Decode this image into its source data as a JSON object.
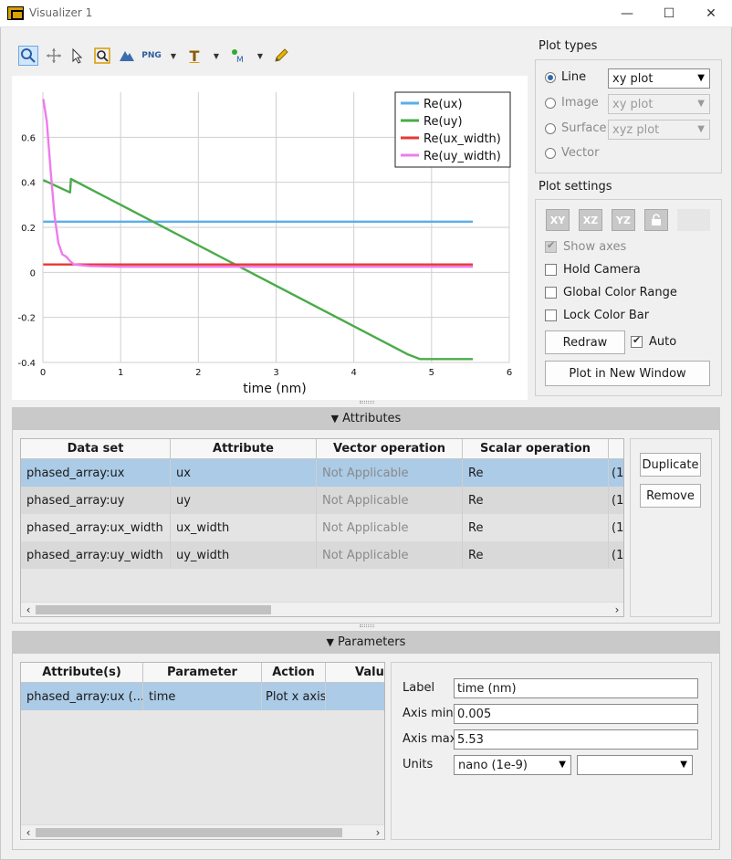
{
  "window": {
    "title": "Visualizer 1",
    "minimize": "—",
    "maximize": "☐",
    "close": "✕"
  },
  "toolbar": {
    "icons": [
      "zoom-icon",
      "pan-icon",
      "select-icon",
      "zoom-extent-icon",
      "mountain-icon",
      "png-export-icon",
      "text-icon",
      "marker-icon",
      "pencil-icon"
    ],
    "png_label": "PNG",
    "text_label": "T",
    "marker_label": "M"
  },
  "chart_data": {
    "type": "line",
    "xlabel": "time (nm)",
    "ylabel": "",
    "xlim": [
      0,
      6
    ],
    "ylim": [
      -0.4,
      0.8
    ],
    "xticks": [
      "0",
      "1",
      "2",
      "3",
      "4",
      "5",
      "6"
    ],
    "yticks": [
      "-0.4",
      "-0.2",
      "0",
      "0.2",
      "0.4",
      "0.6"
    ],
    "grid": true,
    "legend_position": "top-right",
    "series": [
      {
        "name": "Re(ux)",
        "color": "#5aaee8",
        "x": [
          0.005,
          5.53
        ],
        "y": [
          0.225,
          0.225
        ]
      },
      {
        "name": "Re(uy)",
        "color": "#4aab4a",
        "x": [
          0.005,
          0.35,
          0.36,
          4.7,
          4.85,
          5.53
        ],
        "y": [
          0.41,
          0.355,
          0.415,
          -0.365,
          -0.385,
          -0.385
        ]
      },
      {
        "name": "Re(ux_width)",
        "color": "#e53935",
        "x": [
          0.005,
          5.53
        ],
        "y": [
          0.035,
          0.035
        ]
      },
      {
        "name": "Re(uy_width)",
        "color": "#ee7cec",
        "x": [
          0.005,
          0.05,
          0.1,
          0.15,
          0.2,
          0.25,
          0.3,
          0.35,
          0.4,
          0.6,
          1.0,
          2.0,
          3.0,
          4.0,
          5.53
        ],
        "y": [
          0.77,
          0.67,
          0.45,
          0.25,
          0.13,
          0.08,
          0.07,
          0.05,
          0.035,
          0.028,
          0.025,
          0.025,
          0.025,
          0.025,
          0.025
        ]
      }
    ]
  },
  "plot_types": {
    "title": "Plot types",
    "options": [
      {
        "label": "Line",
        "checked": true,
        "select": "xy plot",
        "enabled": true
      },
      {
        "label": "Image",
        "checked": false,
        "select": "xy plot",
        "enabled": false
      },
      {
        "label": "Surface",
        "checked": false,
        "select": "xyz plot",
        "enabled": false
      },
      {
        "label": "Vector",
        "checked": false,
        "select": "",
        "enabled": false
      }
    ]
  },
  "plot_settings": {
    "title": "Plot settings",
    "axis_buttons": [
      "XY",
      "XZ",
      "YZ"
    ],
    "show_axes": "Show axes",
    "hold_camera": "Hold Camera",
    "global_color_range": "Global Color Range",
    "lock_color_bar": "Lock Color Bar",
    "redraw": "Redraw",
    "auto": "Auto",
    "plot_new_window": "Plot in New Window"
  },
  "attributes": {
    "header": "Attributes",
    "columns": [
      "Data set",
      "Attribute",
      "Vector operation",
      "Scalar operation"
    ],
    "rows": [
      {
        "dataset": "phased_array:ux",
        "attribute": "ux",
        "vector": "Not Applicable",
        "scalar": "Re",
        "extra": "(1"
      },
      {
        "dataset": "phased_array:uy",
        "attribute": "uy",
        "vector": "Not Applicable",
        "scalar": "Re",
        "extra": "(1"
      },
      {
        "dataset": "phased_array:ux_width",
        "attribute": "ux_width",
        "vector": "Not Applicable",
        "scalar": "Re",
        "extra": "(1"
      },
      {
        "dataset": "phased_array:uy_width",
        "attribute": "uy_width",
        "vector": "Not Applicable",
        "scalar": "Re",
        "extra": "(1"
      }
    ],
    "duplicate": "Duplicate",
    "remove": "Remove"
  },
  "parameters": {
    "header": "Parameters",
    "columns": [
      "Attribute(s)",
      "Parameter",
      "Action",
      "Value"
    ],
    "rows": [
      {
        "attributes": "phased_array:ux (...",
        "parameter": "time",
        "action": "Plot x axis",
        "value": ""
      }
    ],
    "label_label": "Label",
    "label_value": "time (nm)",
    "axis_min_label": "Axis min",
    "axis_min_value": "0.005",
    "axis_max_label": "Axis max",
    "axis_max_value": "5.53",
    "units_label": "Units",
    "units_value": "nano (1e-9)",
    "units_second": ""
  }
}
